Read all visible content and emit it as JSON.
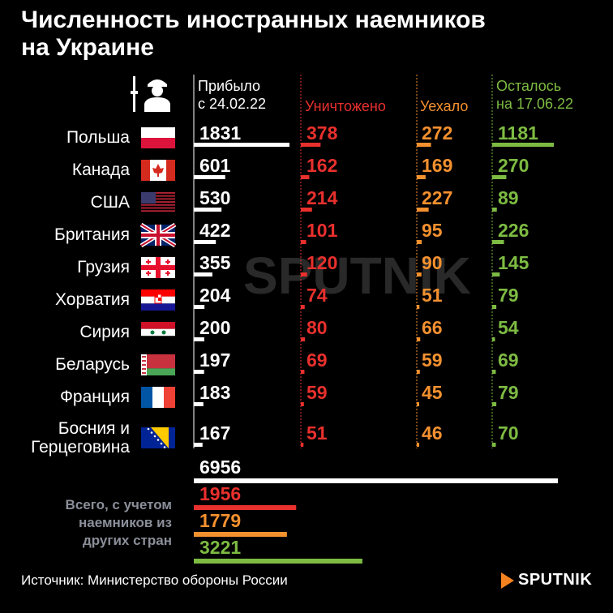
{
  "title": "Численность иностранных наемников\nна Украине",
  "source": "Источник: Министерство обороны России",
  "brand": "SPUTNIK",
  "watermark": "SPUTNIK",
  "colors": {
    "arrived": "#ffffff",
    "destroyed": "#e8302d",
    "left": "#f4912f",
    "remaining": "#7dbb42"
  },
  "total_label": [
    "Всего, с учетом",
    "наемников из",
    "других стран"
  ],
  "chart_data": {
    "type": "table",
    "columns": [
      {
        "key": "arrived",
        "label": [
          "Прибыло",
          "с 24.02.22"
        ]
      },
      {
        "key": "destroyed",
        "label": [
          "Уничтожено"
        ]
      },
      {
        "key": "left",
        "label": [
          "Уехало"
        ]
      },
      {
        "key": "remaining",
        "label": [
          "Осталось",
          "на 17.06.22"
        ]
      }
    ],
    "rows": [
      {
        "country": [
          "Польша"
        ],
        "flag": "poland-flag",
        "arrived": 1831,
        "destroyed": 378,
        "left": 272,
        "remaining": 1181
      },
      {
        "country": [
          "Канада"
        ],
        "flag": "canada-flag",
        "arrived": 601,
        "destroyed": 162,
        "left": 169,
        "remaining": 270
      },
      {
        "country": [
          "США"
        ],
        "flag": "usa-flag",
        "arrived": 530,
        "destroyed": 214,
        "left": 227,
        "remaining": 89
      },
      {
        "country": [
          "Британия"
        ],
        "flag": "uk-flag",
        "arrived": 422,
        "destroyed": 101,
        "left": 95,
        "remaining": 226
      },
      {
        "country": [
          "Грузия"
        ],
        "flag": "georgia-flag",
        "arrived": 355,
        "destroyed": 120,
        "left": 90,
        "remaining": 145
      },
      {
        "country": [
          "Хорватия"
        ],
        "flag": "croatia-flag",
        "arrived": 204,
        "destroyed": 74,
        "left": 51,
        "remaining": 79
      },
      {
        "country": [
          "Сирия"
        ],
        "flag": "syria-flag",
        "arrived": 200,
        "destroyed": 80,
        "left": 66,
        "remaining": 54
      },
      {
        "country": [
          "Беларусь"
        ],
        "flag": "belarus-flag",
        "arrived": 197,
        "destroyed": 69,
        "left": 59,
        "remaining": 69
      },
      {
        "country": [
          "Франция"
        ],
        "flag": "france-flag",
        "arrived": 183,
        "destroyed": 59,
        "left": 45,
        "remaining": 79
      },
      {
        "country": [
          "Босния и",
          "Герцеговина"
        ],
        "flag": "bosnia-flag",
        "arrived": 167,
        "destroyed": 51,
        "left": 46,
        "remaining": 70
      }
    ],
    "totals": {
      "arrived": 6956,
      "destroyed": 1956,
      "left": 1779,
      "remaining": 3221
    }
  }
}
